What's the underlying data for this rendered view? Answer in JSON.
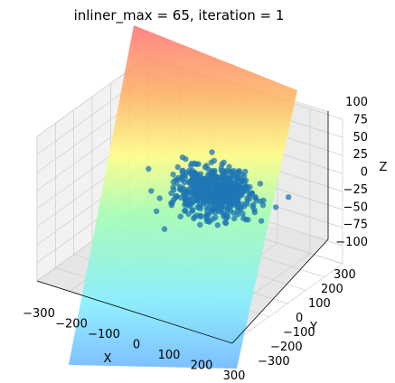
{
  "chart_data": {
    "type": "scatter",
    "projection": "3d",
    "title": "inliner_max = 65, iteration = 1",
    "xlabel": "X",
    "ylabel": "Y",
    "zlabel": "Z",
    "xlim": [
      -300,
      300
    ],
    "ylim": [
      -300,
      300
    ],
    "zlim": [
      -100,
      100
    ],
    "x_ticks": [
      "−300",
      "−200",
      "−100",
      "0",
      "100",
      "200",
      "300"
    ],
    "y_ticks": [
      "−300",
      "−200",
      "−100",
      "0",
      "100",
      "200",
      "300"
    ],
    "z_ticks": [
      "−100",
      "−75",
      "−50",
      "−25",
      "0",
      "25",
      "50",
      "75",
      "100"
    ],
    "grid": true,
    "points": {
      "count": 600,
      "color": "#1f77b4",
      "distribution": "roughly gaussian cluster centred near the origin, with a few outliers",
      "x_spread": 100,
      "y_spread": 100,
      "z_spread": 12
    },
    "plane": {
      "colormap": "jet",
      "alpha": 0.5,
      "fitted_to": "inliers"
    }
  }
}
